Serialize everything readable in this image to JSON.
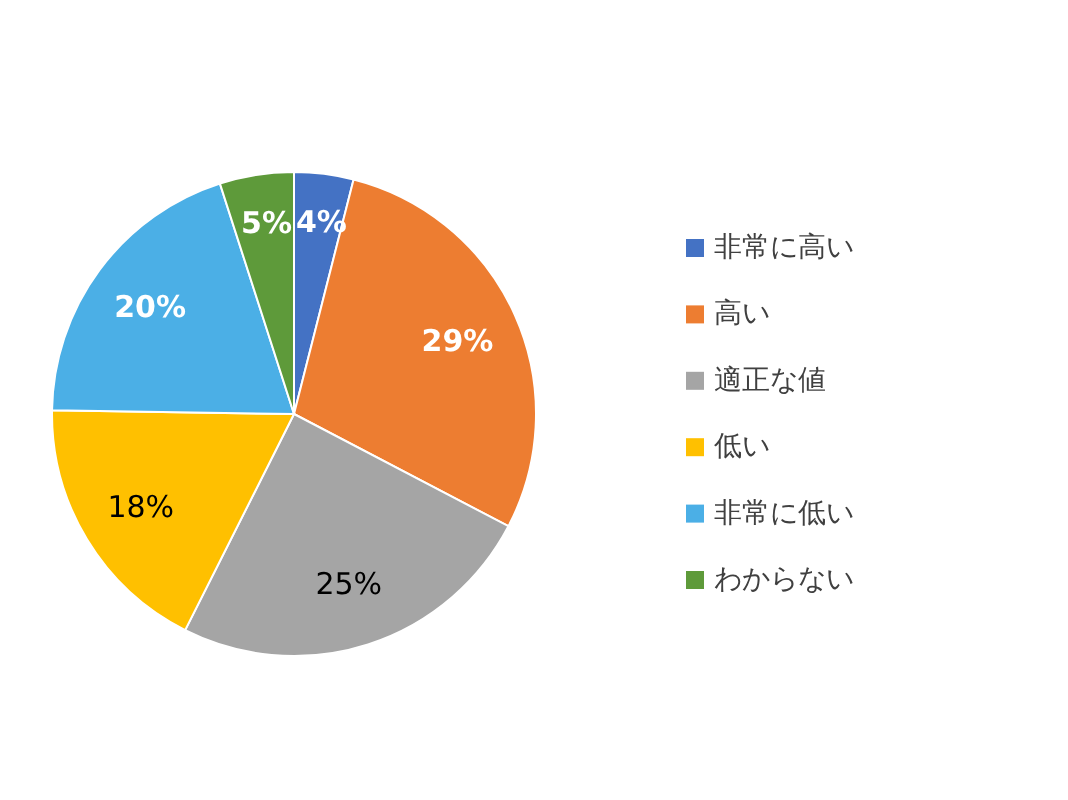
{
  "chart_data": {
    "type": "pie",
    "categories": [
      "非常に高い",
      "高い",
      "適正な値",
      "低い",
      "非常に低い",
      "わからない"
    ],
    "values": [
      4,
      29,
      25,
      18,
      20,
      5
    ],
    "colors": [
      "#4472c4",
      "#ed7d31",
      "#a5a5a5",
      "#ffc000",
      "#4bafe6",
      "#5e9a3a"
    ],
    "value_labels": [
      "4%",
      "29%",
      "25%",
      "18%",
      "20%",
      "5%"
    ],
    "legend": "right"
  }
}
